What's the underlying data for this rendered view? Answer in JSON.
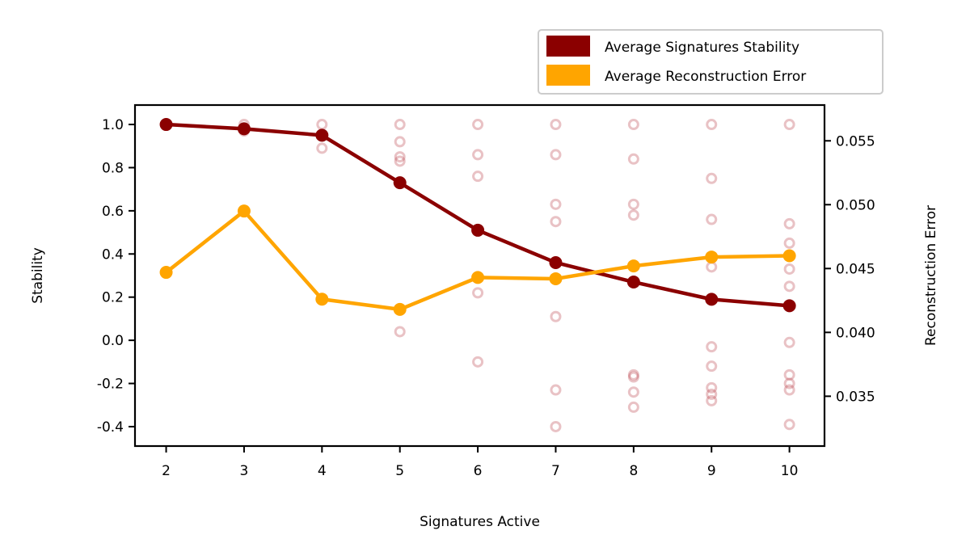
{
  "chart_data": {
    "type": "line",
    "xlabel": "Signatures Active",
    "ylabel": "Stability",
    "y2label": "Reconstruction Error",
    "x": [
      2,
      3,
      4,
      5,
      6,
      7,
      8,
      9,
      10
    ],
    "xlim": [
      1.6,
      10.45
    ],
    "ylim": [
      -0.49,
      1.09
    ],
    "y2lim": [
      0.0311,
      0.0578
    ],
    "yticks": [
      "1.0",
      "0.8",
      "0.6",
      "0.4",
      "0.2",
      "0.0",
      "-0.2",
      "-0.4"
    ],
    "y2ticks": [
      "0.055",
      "0.050",
      "0.045",
      "0.040",
      "0.035"
    ],
    "legend": {
      "placement": "above-right"
    },
    "grid": false,
    "series": [
      {
        "name": "Average Signatures Stability",
        "axis": "left",
        "color": "#8b0000",
        "values": [
          1.0,
          0.98,
          0.95,
          0.73,
          0.51,
          0.36,
          0.27,
          0.19,
          0.16
        ]
      },
      {
        "name": "Average Reconstruction Error",
        "axis": "right",
        "color": "#ffa500",
        "values": [
          0.0447,
          0.0495,
          0.0426,
          0.0418,
          0.0443,
          0.0442,
          0.0452,
          0.0459,
          0.046
        ]
      }
    ],
    "scatter": {
      "color": "#c0505a",
      "points": [
        [
          2,
          1.0
        ],
        [
          3,
          1.0
        ],
        [
          3,
          0.98
        ],
        [
          3,
          0.97
        ],
        [
          4,
          1.0
        ],
        [
          4,
          0.95
        ],
        [
          4,
          0.89
        ],
        [
          5,
          1.0
        ],
        [
          5,
          0.92
        ],
        [
          5,
          0.85
        ],
        [
          5,
          0.83
        ],
        [
          5,
          0.04
        ],
        [
          6,
          1.0
        ],
        [
          6,
          0.86
        ],
        [
          6,
          0.76
        ],
        [
          6,
          0.29
        ],
        [
          6,
          0.22
        ],
        [
          6,
          -0.1
        ],
        [
          7,
          1.0
        ],
        [
          7,
          0.86
        ],
        [
          7,
          0.63
        ],
        [
          7,
          0.55
        ],
        [
          7,
          0.11
        ],
        [
          7,
          -0.23
        ],
        [
          7,
          -0.4
        ],
        [
          8,
          1.0
        ],
        [
          8,
          0.84
        ],
        [
          8,
          0.63
        ],
        [
          8,
          0.58
        ],
        [
          8,
          -0.16
        ],
        [
          8,
          -0.24
        ],
        [
          8,
          -0.31
        ],
        [
          8,
          -0.17
        ],
        [
          9,
          1.0
        ],
        [
          9,
          0.75
        ],
        [
          9,
          0.56
        ],
        [
          9,
          0.34
        ],
        [
          9,
          -0.03
        ],
        [
          9,
          -0.12
        ],
        [
          9,
          -0.22
        ],
        [
          9,
          -0.25
        ],
        [
          9,
          -0.28
        ],
        [
          10,
          1.0
        ],
        [
          10,
          0.54
        ],
        [
          10,
          0.45
        ],
        [
          10,
          0.33
        ],
        [
          10,
          0.25
        ],
        [
          10,
          -0.01
        ],
        [
          10,
          -0.16
        ],
        [
          10,
          -0.2
        ],
        [
          10,
          -0.23
        ],
        [
          10,
          -0.39
        ]
      ]
    }
  }
}
